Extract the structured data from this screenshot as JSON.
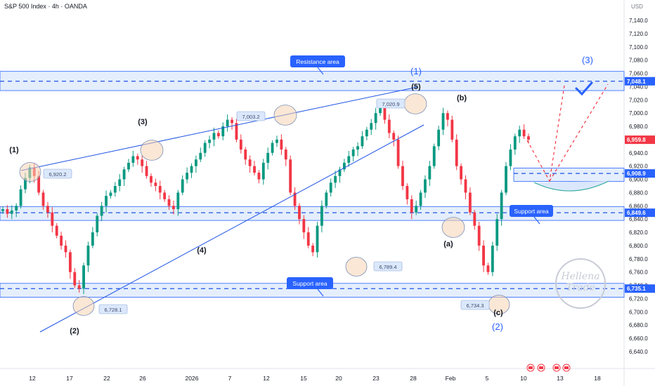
{
  "header": {
    "title": "S&P 500 Index · 4h · OANDA",
    "currency": "USD"
  },
  "watermark": "Hellena Trade",
  "colors": {
    "up": "#089981",
    "down": "#f23645",
    "zone_fill": "#dbe8fb",
    "zone_border": "#2962ff",
    "line_blue": "#1e53e5",
    "label_blue": "#2962ff",
    "projection": "#f23645",
    "circle_fill": "#f5d3b2"
  },
  "annotations": {
    "resistance_area": "Resistance area",
    "support_area_bottom": "Support area",
    "support_area_right": "Support area",
    "wave_1_left": "(1)",
    "wave_2_left": "(2)",
    "wave_3_left": "(3)",
    "wave_4": "(4)",
    "wave_5": "(5)",
    "wave_1_big": "(1)",
    "wave_a": "(a)",
    "wave_b": "(b)",
    "wave_c": "(c)",
    "wave_2_big": "(2)",
    "wave_3_big": "(3)"
  },
  "chart_data": {
    "type": "candlestick",
    "title": "S&P 500 Index · 4h · OANDA",
    "ylabel": "USD",
    "ylim": [
      6630,
      7160
    ],
    "y_ticks": [
      "7,140.0",
      "7,120.0",
      "7,100.0",
      "7,080.0",
      "7,060.0",
      "7,040.0",
      "7,020.0",
      "7,000.0",
      "6,980.0",
      "6,960.0",
      "6,940.0",
      "6,920.0",
      "6,900.0",
      "6,880.0",
      "6,860.0",
      "6,840.0",
      "6,820.0",
      "6,800.0",
      "6,780.0",
      "6,760.0",
      "6,740.0",
      "6,720.0",
      "6,700.0",
      "6,680.0",
      "6,660.0",
      "6,640.0"
    ],
    "x_ticks": [
      "12",
      "17",
      "22",
      "26",
      "2026",
      "7",
      "12",
      "15",
      "20",
      "23",
      "28",
      "Feb",
      "5",
      "10",
      "13",
      "18"
    ],
    "price_tags": [
      {
        "label": "7,048.1",
        "value": 7048.1,
        "color": "#2962ff"
      },
      {
        "label": "6,959.8",
        "value": 6959.8,
        "color": "#f23645"
      },
      {
        "label": "6,908.9",
        "value": 6908.9,
        "color": "#2962ff"
      },
      {
        "label": "6,849.6",
        "value": 6849.6,
        "color": "#2962ff"
      },
      {
        "label": "6,735.1",
        "value": 6735.1,
        "color": "#2962ff"
      }
    ],
    "level_labels": [
      {
        "label": "6,920.2",
        "value": 6920.2
      },
      {
        "label": "7,003.2",
        "value": 7003.2
      },
      {
        "label": "7,020.9",
        "value": 7020.9
      },
      {
        "label": "6,789.4",
        "value": 6789.4
      },
      {
        "label": "6,728.1",
        "value": 6728.1
      },
      {
        "label": "6,734.3",
        "value": 6734.3
      }
    ],
    "zones": [
      {
        "name": "Resistance area",
        "from": 7034,
        "to": 7063
      },
      {
        "name": "Support area",
        "from": 6838,
        "to": 6859
      },
      {
        "name": "Support area",
        "from": 6722,
        "to": 6743
      },
      {
        "name": "Support area",
        "from": 6897,
        "to": 6917
      }
    ],
    "series": [
      {
        "name": "",
        "close": [
          6855,
          6848,
          6853,
          6860,
          6885,
          6902,
          6918,
          6905,
          6880,
          6860,
          6850,
          6830,
          6815,
          6800,
          6790,
          6760,
          6740,
          6735,
          6770,
          6800,
          6820,
          6845,
          6860,
          6875,
          6880,
          6890,
          6900,
          6915,
          6925,
          6935,
          6930,
          6920,
          6905,
          6895,
          6890,
          6880,
          6870,
          6860,
          6855,
          6880,
          6900,
          6910,
          6920,
          6930,
          6940,
          6955,
          6960,
          6970,
          6965,
          6980,
          6990,
          6985,
          6960,
          6945,
          6930,
          6920,
          6910,
          6900,
          6925,
          6940,
          6955,
          6960,
          6945,
          6930,
          6880,
          6860,
          6840,
          6820,
          6800,
          6790,
          6830,
          6860,
          6880,
          6895,
          6905,
          6915,
          6925,
          6935,
          6945,
          6950,
          6965,
          6975,
          6985,
          7000,
          7010,
          6990,
          6970,
          6960,
          6920,
          6890,
          6870,
          6850,
          6860,
          6880,
          6900,
          6920,
          6950,
          6975,
          7000,
          6990,
          6960,
          6920,
          6900,
          6880,
          6850,
          6830,
          6800,
          6770,
          6760,
          6800,
          6840,
          6880,
          6920,
          6945,
          6965,
          6975,
          6965,
          6960
        ]
      }
    ]
  }
}
